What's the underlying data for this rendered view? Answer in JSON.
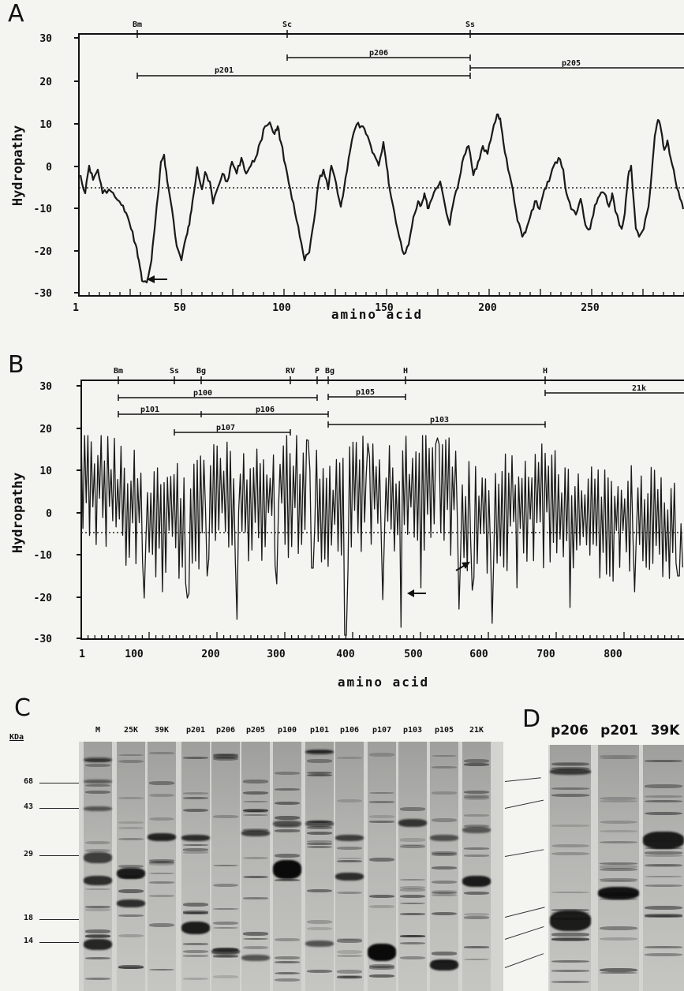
{
  "panelA": {
    "letter": "A",
    "ylabel": "Hydropathy",
    "xlabel": "amino acid",
    "yticks": [
      "30",
      "20",
      "10",
      "0",
      "-10",
      "-20",
      "-30"
    ],
    "xticks": [
      "1",
      "50",
      "100",
      "150",
      "200",
      "250"
    ],
    "sites": [
      "Bm",
      "Sc",
      "Ss"
    ],
    "fragments": [
      "p206",
      "p201",
      "p205"
    ]
  },
  "panelB": {
    "letter": "B",
    "ylabel": "Hydropathy",
    "xlabel": "amino acid",
    "yticks": [
      "30",
      "20",
      "10",
      "0",
      "-10",
      "-20",
      "-30"
    ],
    "xticks": [
      "1",
      "100",
      "200",
      "300",
      "400",
      "500",
      "600",
      "700",
      "800"
    ],
    "sites": [
      "Bm",
      "Ss",
      "Bg",
      "RV",
      "P",
      "Bg",
      "H",
      "H"
    ],
    "fragments": [
      "p100",
      "p105",
      "21k",
      "p101",
      "p106",
      "p103",
      "p107"
    ]
  },
  "panelC": {
    "letter": "C",
    "unit": "KDa",
    "markers": [
      "68",
      "43",
      "29",
      "18",
      "14"
    ],
    "lanes": [
      "M",
      "25K",
      "39K",
      "p201",
      "p206",
      "p205",
      "p100",
      "p101",
      "p106",
      "p107",
      "p103",
      "p105",
      "21K"
    ]
  },
  "panelD": {
    "letter": "D",
    "lanes": [
      "p206",
      "p201",
      "39K"
    ]
  }
}
